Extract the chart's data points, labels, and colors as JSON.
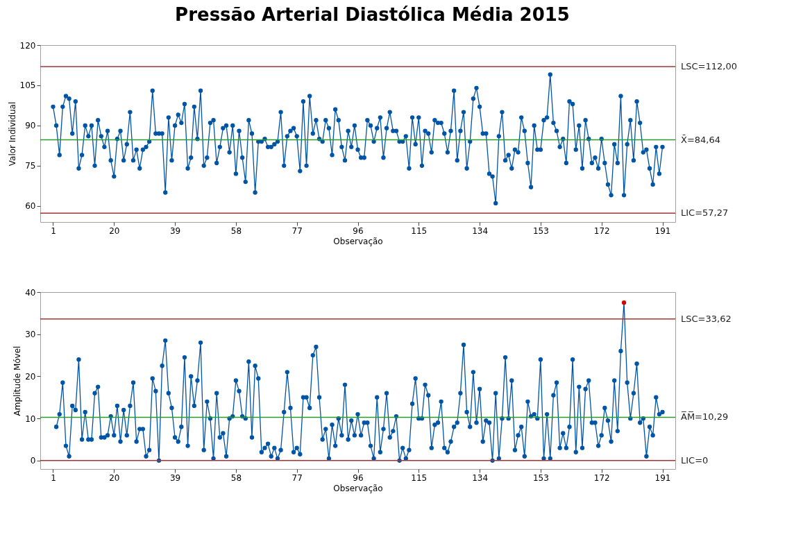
{
  "chart_data": [
    {
      "type": "line",
      "title": "Pressão Arterial Diastólica Média 2015",
      "xlabel": "Observação",
      "ylabel": "Valor Individual",
      "marker": "circle",
      "xlim": [
        -3,
        195
      ],
      "xticks": [
        1,
        20,
        39,
        58,
        77,
        96,
        115,
        134,
        153,
        172,
        191
      ],
      "ylim": [
        54,
        120
      ],
      "yticks": [
        60,
        75,
        90,
        105,
        120
      ],
      "x": [
        1,
        2,
        3,
        4,
        5,
        6,
        7,
        8,
        9,
        10,
        11,
        12,
        13,
        14,
        15,
        16,
        17,
        18,
        19,
        20,
        21,
        22,
        23,
        24,
        25,
        26,
        27,
        28,
        29,
        30,
        31,
        32,
        33,
        34,
        35,
        36,
        37,
        38,
        39,
        40,
        41,
        42,
        43,
        44,
        45,
        46,
        47,
        48,
        49,
        50,
        51,
        52,
        53,
        54,
        55,
        56,
        57,
        58,
        59,
        60,
        61,
        62,
        63,
        64,
        65,
        66,
        67,
        68,
        69,
        70,
        71,
        72,
        73,
        74,
        75,
        76,
        77,
        78,
        79,
        80,
        81,
        82,
        83,
        84,
        85,
        86,
        87,
        88,
        89,
        90,
        91,
        92,
        93,
        94,
        95,
        96,
        97,
        98,
        99,
        100,
        101,
        102,
        103,
        104,
        105,
        106,
        107,
        108,
        109,
        110,
        111,
        112,
        113,
        114,
        115,
        116,
        117,
        118,
        119,
        120,
        121,
        122,
        123,
        124,
        125,
        126,
        127,
        128,
        129,
        130,
        131,
        132,
        133,
        134,
        135,
        136,
        137,
        138,
        139,
        140,
        141,
        142,
        143,
        144,
        145,
        146,
        147,
        148,
        149,
        150,
        151,
        152,
        153,
        154,
        155,
        156,
        157,
        158,
        159,
        160,
        161,
        162,
        163,
        164,
        165,
        166,
        167,
        168,
        169,
        170,
        171,
        172,
        173,
        174,
        175,
        176,
        177,
        178,
        179,
        180,
        181,
        182,
        183,
        184,
        185,
        186,
        187,
        188,
        189,
        190,
        191
      ],
      "series": [
        {
          "color": "#0054a6",
          "values": [
            97,
            90,
            79,
            97,
            101,
            100,
            87,
            99,
            74,
            79,
            90,
            86,
            90,
            75,
            92,
            86,
            82,
            88,
            77,
            71,
            85,
            88,
            77,
            83,
            95,
            77,
            81,
            74,
            81,
            82,
            84,
            103,
            87,
            87,
            87,
            65,
            93,
            77,
            90,
            94,
            91,
            98,
            74,
            78,
            97,
            85,
            103,
            75,
            78,
            91,
            92,
            76,
            82,
            89,
            90,
            80,
            90,
            72,
            88,
            78,
            69,
            92,
            87,
            65,
            84,
            84,
            85,
            82,
            82,
            83,
            84,
            95,
            75,
            86,
            88,
            89,
            86,
            73,
            99,
            75,
            101,
            87,
            92,
            85,
            84,
            92,
            89,
            79,
            96,
            92,
            82,
            77,
            88,
            82,
            90,
            81,
            78,
            78,
            92,
            90,
            84,
            89,
            93,
            78,
            89,
            95,
            88,
            88,
            84,
            84,
            86,
            74,
            93,
            83,
            93,
            75,
            88,
            87,
            80,
            92,
            91,
            91,
            87,
            80,
            88,
            103,
            77,
            88,
            95,
            74,
            84,
            100,
            104,
            97,
            87,
            87,
            72,
            71,
            61,
            86,
            95,
            77,
            79,
            74,
            81,
            80,
            93,
            88,
            76,
            67,
            90,
            81,
            81,
            92,
            93,
            109,
            91,
            88,
            82,
            85,
            76,
            99,
            98,
            81,
            90,
            74,
            92,
            85,
            76,
            78,
            74,
            85,
            76,
            68,
            64,
            83,
            76,
            101,
            64,
            83,
            92,
            77,
            99,
            91,
            80,
            81,
            74,
            68,
            82,
            72,
            82
          ]
        }
      ],
      "ref_lines": [
        {
          "axis": "y",
          "value": 112,
          "label": "LSC=112,00",
          "color": "#a83232"
        },
        {
          "axis": "y",
          "value": 84.64,
          "label": "X̄=84,64",
          "color": "#2a9a2a"
        },
        {
          "axis": "y",
          "value": 57.27,
          "label": "LIC=57,27",
          "color": "#a83232"
        }
      ]
    },
    {
      "type": "line",
      "xlabel": "Observação",
      "ylabel": "Amplitude Móvel",
      "marker": "circle",
      "xlim": [
        -3,
        195
      ],
      "xticks": [
        1,
        20,
        39,
        58,
        77,
        96,
        115,
        134,
        153,
        172,
        191
      ],
      "ylim": [
        -2,
        40
      ],
      "yticks": [
        0,
        10,
        20,
        30,
        40
      ],
      "x": [
        2,
        3,
        4,
        5,
        6,
        7,
        8,
        9,
        10,
        11,
        12,
        13,
        14,
        15,
        16,
        17,
        18,
        19,
        20,
        21,
        22,
        23,
        24,
        25,
        26,
        27,
        28,
        29,
        30,
        31,
        32,
        33,
        34,
        35,
        36,
        37,
        38,
        39,
        40,
        41,
        42,
        43,
        44,
        45,
        46,
        47,
        48,
        49,
        50,
        51,
        52,
        53,
        54,
        55,
        56,
        57,
        58,
        59,
        60,
        61,
        62,
        63,
        64,
        65,
        66,
        67,
        68,
        69,
        70,
        71,
        72,
        73,
        74,
        75,
        76,
        77,
        78,
        79,
        80,
        81,
        82,
        83,
        84,
        85,
        86,
        87,
        88,
        89,
        90,
        91,
        92,
        93,
        94,
        95,
        96,
        97,
        98,
        99,
        100,
        101,
        102,
        103,
        104,
        105,
        106,
        107,
        108,
        109,
        110,
        111,
        112,
        113,
        114,
        115,
        116,
        117,
        118,
        119,
        120,
        121,
        122,
        123,
        124,
        125,
        126,
        127,
        128,
        129,
        130,
        131,
        132,
        133,
        134,
        135,
        136,
        137,
        138,
        139,
        140,
        141,
        142,
        143,
        144,
        145,
        146,
        147,
        148,
        149,
        150,
        151,
        152,
        153,
        154,
        155,
        156,
        157,
        158,
        159,
        160,
        161,
        162,
        163,
        164,
        165,
        166,
        167,
        168,
        169,
        170,
        171,
        172,
        173,
        174,
        175,
        176,
        177,
        178,
        179,
        180,
        181,
        182,
        183,
        184,
        185,
        186,
        187,
        188,
        189,
        190,
        191
      ],
      "series": [
        {
          "color": "#0054a6",
          "values": [
            8,
            11,
            18.5,
            3.5,
            1,
            13,
            12,
            24,
            5,
            11.5,
            5,
            5,
            16,
            17.5,
            5.5,
            5.5,
            6,
            10.5,
            6,
            13,
            4.5,
            12,
            6,
            13,
            18.5,
            4.5,
            7.5,
            7.5,
            1,
            2.5,
            19.5,
            16.5,
            0,
            22.5,
            28.5,
            16,
            12.5,
            5.5,
            4.5,
            8,
            24.5,
            3.5,
            20,
            13,
            19,
            28,
            2.5,
            14,
            10,
            0.5,
            16,
            5.5,
            6.5,
            1,
            10,
            10.5,
            19,
            16.5,
            10.5,
            10,
            23.5,
            5.5,
            22.5,
            19.5,
            2,
            3,
            4,
            1,
            3,
            0.5,
            2.5,
            11.5,
            21,
            12.5,
            2,
            3,
            1.5,
            15,
            15,
            12.5,
            25,
            27,
            15,
            5,
            7.5,
            0.5,
            8.5,
            3.5,
            10,
            6,
            18,
            5,
            9.5,
            6,
            11,
            6,
            9,
            9,
            3.5,
            0.5,
            15,
            2,
            7.5,
            16,
            5.5,
            7,
            10.5,
            0,
            3,
            0.5,
            2.5,
            13.5,
            19.5,
            10,
            10,
            18,
            15.5,
            3,
            8.5,
            9,
            14,
            3,
            2,
            4.5,
            8,
            9,
            16,
            27.5,
            11.5,
            8,
            21,
            9,
            17,
            4.5,
            9.5,
            9,
            0,
            16,
            0.5,
            10,
            24.5,
            10,
            19,
            2.5,
            6,
            8,
            1,
            14,
            10.5,
            11,
            10,
            24,
            0.5,
            11,
            0.5,
            15.5,
            18.5,
            3,
            6.5,
            3,
            8,
            24,
            2,
            17.5,
            3,
            17,
            19,
            9,
            9,
            3.5,
            6,
            12.5,
            9.5,
            4.5,
            19,
            7,
            26,
            37.5,
            18.5,
            10,
            16,
            23,
            9,
            10,
            1,
            8,
            6,
            15,
            11,
            11.5
          ],
          "colors": [
            "#0054a6",
            "#0054a6",
            "#0054a6",
            "#0054a6",
            "#0054a6",
            "#0054a6",
            "#0054a6",
            "#0054a6",
            "#0054a6",
            "#0054a6",
            "#0054a6",
            "#0054a6",
            "#0054a6",
            "#0054a6",
            "#0054a6",
            "#0054a6",
            "#0054a6",
            "#0054a6",
            "#0054a6",
            "#0054a6",
            "#0054a6",
            "#0054a6",
            "#0054a6",
            "#0054a6",
            "#0054a6",
            "#0054a6",
            "#0054a6",
            "#0054a6",
            "#0054a6",
            "#0054a6",
            "#0054a6",
            "#0054a6",
            "#0054a6",
            "#0054a6",
            "#0054a6",
            "#0054a6",
            "#0054a6",
            "#0054a6",
            "#0054a6",
            "#0054a6",
            "#0054a6",
            "#0054a6",
            "#0054a6",
            "#0054a6",
            "#0054a6",
            "#0054a6",
            "#0054a6",
            "#0054a6",
            "#0054a6",
            "#0054a6",
            "#0054a6",
            "#0054a6",
            "#0054a6",
            "#0054a6",
            "#0054a6",
            "#0054a6",
            "#0054a6",
            "#0054a6",
            "#0054a6",
            "#0054a6",
            "#0054a6",
            "#0054a6",
            "#0054a6",
            "#0054a6",
            "#0054a6",
            "#0054a6",
            "#0054a6",
            "#0054a6",
            "#0054a6",
            "#0054a6",
            "#0054a6",
            "#0054a6",
            "#0054a6",
            "#0054a6",
            "#0054a6",
            "#0054a6",
            "#0054a6",
            "#0054a6",
            "#0054a6",
            "#0054a6",
            "#0054a6",
            "#0054a6",
            "#0054a6",
            "#0054a6",
            "#0054a6",
            "#0054a6",
            "#0054a6",
            "#0054a6",
            "#0054a6",
            "#0054a6",
            "#0054a6",
            "#0054a6",
            "#0054a6",
            "#0054a6",
            "#0054a6",
            "#0054a6",
            "#0054a6",
            "#0054a6",
            "#0054a6",
            "#0054a6",
            "#0054a6",
            "#0054a6",
            "#0054a6",
            "#0054a6",
            "#0054a6",
            "#0054a6",
            "#0054a6",
            "#0054a6",
            "#0054a6",
            "#0054a6",
            "#0054a6",
            "#0054a6",
            "#0054a6",
            "#0054a6",
            "#0054a6",
            "#0054a6",
            "#0054a6",
            "#0054a6",
            "#0054a6",
            "#0054a6",
            "#0054a6",
            "#0054a6",
            "#0054a6",
            "#0054a6",
            "#0054a6",
            "#0054a6",
            "#0054a6",
            "#0054a6",
            "#0054a6",
            "#0054a6",
            "#0054a6",
            "#0054a6",
            "#0054a6",
            "#0054a6",
            "#0054a6",
            "#0054a6",
            "#0054a6",
            "#0054a6",
            "#0054a6",
            "#0054a6",
            "#0054a6",
            "#0054a6",
            "#0054a6",
            "#0054a6",
            "#0054a6",
            "#0054a6",
            "#0054a6",
            "#0054a6",
            "#0054a6",
            "#0054a6",
            "#0054a6",
            "#0054a6",
            "#0054a6",
            "#0054a6",
            "#0054a6",
            "#0054a6",
            "#0054a6",
            "#0054a6",
            "#0054a6",
            "#0054a6",
            "#0054a6",
            "#0054a6",
            "#0054a6",
            "#0054a6",
            "#0054a6",
            "#0054a6",
            "#0054a6",
            "#0054a6",
            "#0054a6",
            "#0054a6",
            "#0054a6",
            "#0054a6",
            "#0054a6",
            "#0054a6",
            "#0054a6",
            "#0054a6",
            "#0054a6",
            "#dd0000",
            "#0054a6",
            "#0054a6",
            "#0054a6",
            "#0054a6",
            "#0054a6",
            "#0054a6",
            "#0054a6",
            "#0054a6",
            "#0054a6",
            "#0054a6",
            "#0054a6",
            "#0054a6"
          ]
        }
      ],
      "ref_lines": [
        {
          "axis": "y",
          "value": 33.62,
          "label": "LSC=33,62",
          "color": "#a83232"
        },
        {
          "axis": "y",
          "value": 10.29,
          "label": "A̅M̅=10,29",
          "color": "#2a9a2a"
        },
        {
          "axis": "y",
          "value": 0,
          "label": "LIC=0",
          "color": "#a83232"
        }
      ]
    }
  ]
}
